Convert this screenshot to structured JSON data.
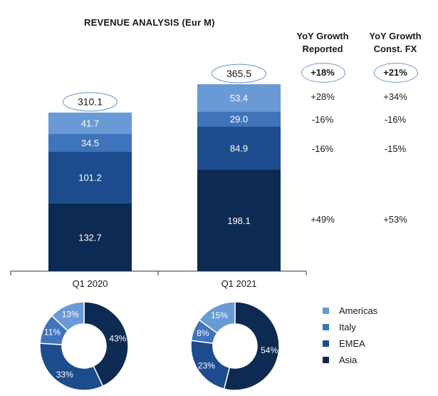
{
  "title": "REVENUE ANALYSIS (Eur M)",
  "column_headers": {
    "reported": [
      "YoY Growth",
      "Reported"
    ],
    "const_fx": [
      "YoY Growth",
      "Const. FX"
    ]
  },
  "colors": {
    "Americas": "#6a9ad6",
    "Italy": "#3f74ba",
    "EMEA": "#1c4c8d",
    "Asia": "#0d2a52",
    "oval_border": "#6a93cf",
    "axis": "#333333"
  },
  "chart_data": [
    {
      "type": "bar",
      "stacked": true,
      "title": "REVENUE ANALYSIS (Eur M)",
      "categories": [
        "Q1 2020",
        "Q1 2021"
      ],
      "series": [
        {
          "name": "Asia",
          "values": [
            132.7,
            198.1
          ]
        },
        {
          "name": "EMEA",
          "values": [
            101.2,
            84.9
          ]
        },
        {
          "name": "Italy",
          "values": [
            34.5,
            29.0
          ]
        },
        {
          "name": "Americas",
          "values": [
            41.7,
            53.4
          ]
        }
      ],
      "totals": [
        "310.1",
        "365.5"
      ],
      "value_labels": [
        [
          "132.7",
          "101.2",
          "34.5",
          "41.7"
        ],
        [
          "198.1",
          "84.9",
          "29.0",
          "53.4"
        ]
      ],
      "ylim": [
        0,
        390
      ]
    },
    {
      "type": "pie",
      "donut": true,
      "category": "Q1 2020",
      "slices": [
        {
          "name": "Asia",
          "value": 43,
          "label": "43%"
        },
        {
          "name": "EMEA",
          "value": 33,
          "label": "33%"
        },
        {
          "name": "Italy",
          "value": 11,
          "label": "11%"
        },
        {
          "name": "Americas",
          "value": 13,
          "label": "13%"
        }
      ]
    },
    {
      "type": "pie",
      "donut": true,
      "category": "Q1 2021",
      "slices": [
        {
          "name": "Asia",
          "value": 54,
          "label": "54%"
        },
        {
          "name": "EMEA",
          "value": 23,
          "label": "23%"
        },
        {
          "name": "Italy",
          "value": 8,
          "label": "8%"
        },
        {
          "name": "Americas",
          "value": 15,
          "label": "15%"
        }
      ]
    }
  ],
  "growth": {
    "total": {
      "reported": "+18%",
      "const_fx": "+21%"
    },
    "Americas": {
      "reported": "+28%",
      "const_fx": "+34%"
    },
    "Italy": {
      "reported": "-16%",
      "const_fx": "-16%"
    },
    "EMEA": {
      "reported": "-16%",
      "const_fx": "-15%"
    },
    "Asia": {
      "reported": "+49%",
      "const_fx": "+53%"
    }
  },
  "legend": [
    "Americas",
    "Italy",
    "EMEA",
    "Asia"
  ]
}
